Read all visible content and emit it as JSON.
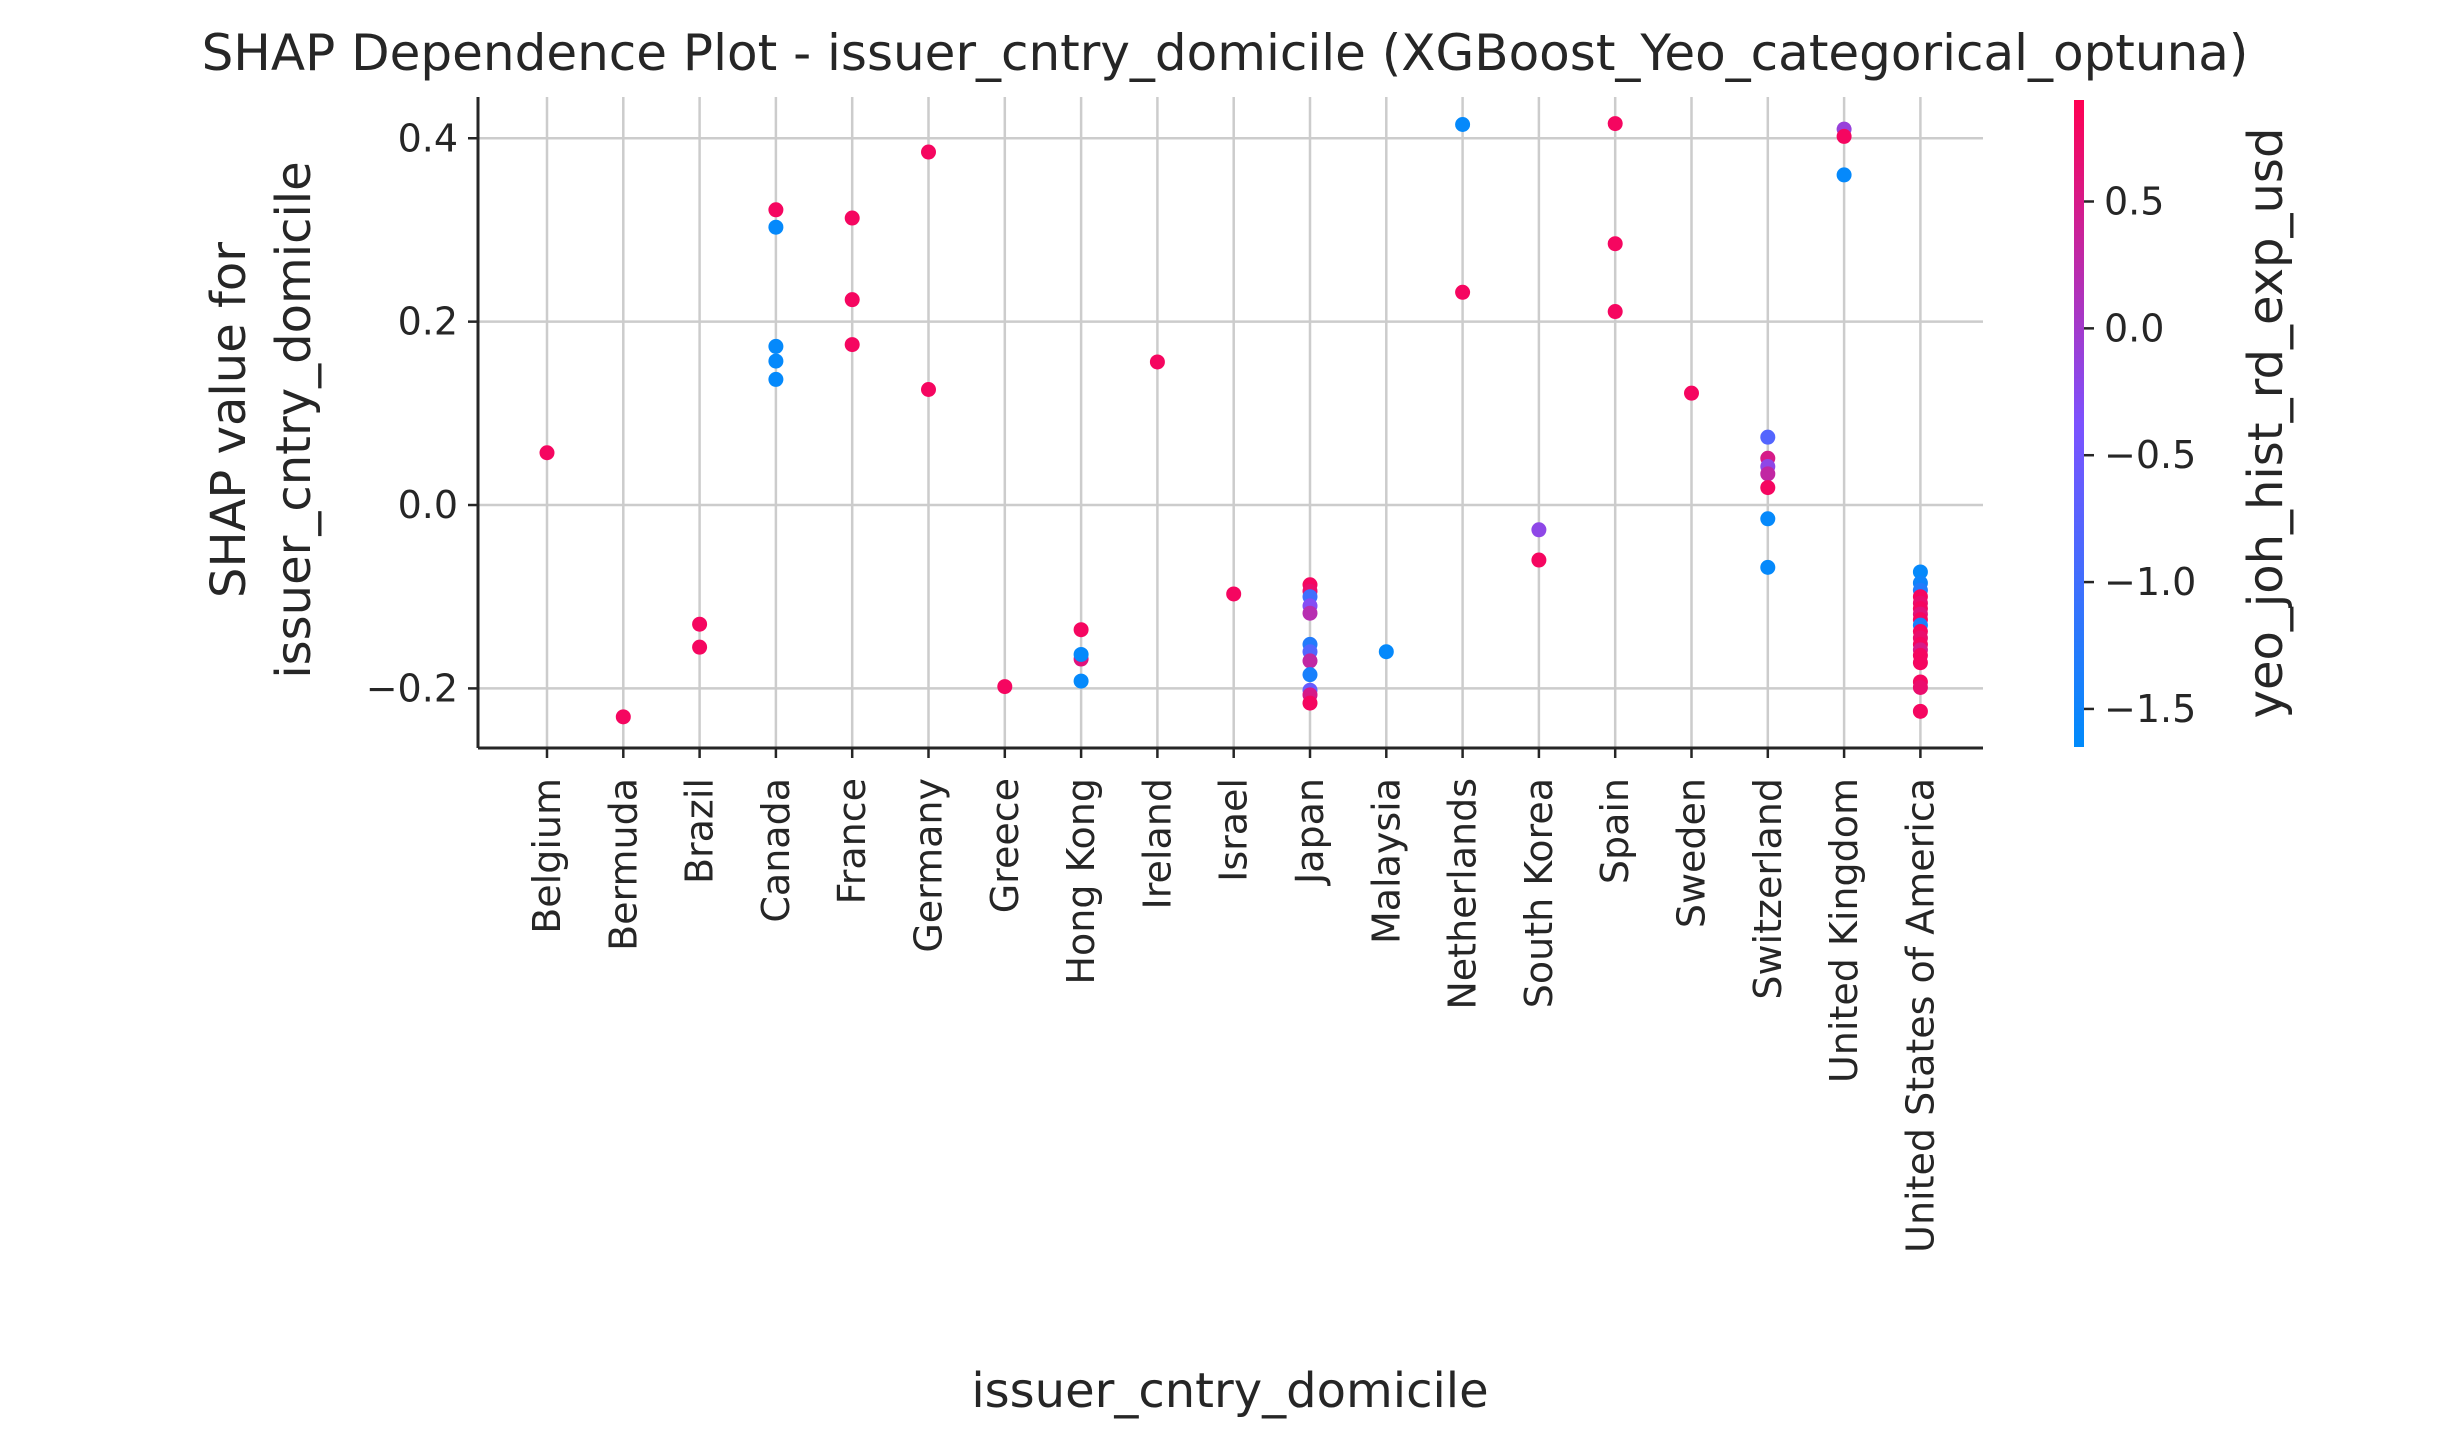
{
  "chart_data": {
    "type": "scatter",
    "title": "SHAP Dependence Plot - issuer_cntry_domicile (XGBoost_Yeo_categorical_optuna)",
    "xlabel": "issuer_cntry_domicile",
    "ylabel_lines": [
      "SHAP value for",
      "issuer_cntry_domicile"
    ],
    "categories": [
      "Belgium",
      "Bermuda",
      "Brazil",
      "Canada",
      "France",
      "Germany",
      "Greece",
      "Hong Kong",
      "Ireland",
      "Israel",
      "Japan",
      "Malaysia",
      "Netherlands",
      "South Korea",
      "Spain",
      "Sweden",
      "Switzerland",
      "United Kingdom",
      "United States of America"
    ],
    "ylim": [
      -0.265,
      0.445
    ],
    "yticks": [
      -0.2,
      0.0,
      0.2,
      0.4
    ],
    "ytick_labels": [
      "−0.2",
      "0.0",
      "0.2",
      "0.4"
    ],
    "grid": true,
    "colorbar": {
      "label": "yeo_joh_hist_rd_exp_usd",
      "range": [
        -1.65,
        0.9
      ],
      "ticks": [
        0.5,
        0.0,
        -0.5,
        -1.0,
        -1.5
      ],
      "tick_labels": [
        "0.5",
        "0.0",
        "−0.5",
        "−1.0",
        "−1.5"
      ],
      "colors": [
        "#008bfb",
        "#7c52ff",
        "#ff0052"
      ]
    },
    "points": [
      {
        "x": "Belgium",
        "y": 0.057,
        "c": 0.8
      },
      {
        "x": "Bermuda",
        "y": -0.231,
        "c": 0.8
      },
      {
        "x": "Brazil",
        "y": -0.13,
        "c": 0.8
      },
      {
        "x": "Brazil",
        "y": -0.155,
        "c": 0.8
      },
      {
        "x": "Canada",
        "y": 0.322,
        "c": 0.8
      },
      {
        "x": "Canada",
        "y": 0.303,
        "c": -1.6
      },
      {
        "x": "Canada",
        "y": 0.173,
        "c": -1.6
      },
      {
        "x": "Canada",
        "y": 0.157,
        "c": -1.6
      },
      {
        "x": "Canada",
        "y": 0.137,
        "c": -1.6
      },
      {
        "x": "France",
        "y": 0.313,
        "c": 0.8
      },
      {
        "x": "France",
        "y": 0.224,
        "c": 0.8
      },
      {
        "x": "France",
        "y": 0.175,
        "c": 0.8
      },
      {
        "x": "Germany",
        "y": 0.385,
        "c": 0.8
      },
      {
        "x": "Germany",
        "y": 0.126,
        "c": 0.8
      },
      {
        "x": "Greece",
        "y": -0.198,
        "c": 0.8
      },
      {
        "x": "Hong Kong",
        "y": -0.136,
        "c": 0.8
      },
      {
        "x": "Hong Kong",
        "y": -0.168,
        "c": 0.6
      },
      {
        "x": "Hong Kong",
        "y": -0.163,
        "c": -1.6
      },
      {
        "x": "Hong Kong",
        "y": -0.192,
        "c": -1.6
      },
      {
        "x": "Ireland",
        "y": 0.156,
        "c": 0.8
      },
      {
        "x": "Israel",
        "y": -0.097,
        "c": 0.8
      },
      {
        "x": "Japan",
        "y": -0.087,
        "c": 0.8
      },
      {
        "x": "Japan",
        "y": -0.094,
        "c": 0.7
      },
      {
        "x": "Japan",
        "y": -0.1,
        "c": -1.0
      },
      {
        "x": "Japan",
        "y": -0.11,
        "c": -0.3
      },
      {
        "x": "Japan",
        "y": -0.118,
        "c": 0.2
      },
      {
        "x": "Japan",
        "y": -0.152,
        "c": -1.3
      },
      {
        "x": "Japan",
        "y": -0.16,
        "c": -0.8
      },
      {
        "x": "Japan",
        "y": -0.17,
        "c": 0.3
      },
      {
        "x": "Japan",
        "y": -0.185,
        "c": -1.4
      },
      {
        "x": "Japan",
        "y": -0.202,
        "c": -0.6
      },
      {
        "x": "Japan",
        "y": -0.207,
        "c": 0.5
      },
      {
        "x": "Japan",
        "y": -0.216,
        "c": 0.8
      },
      {
        "x": "Malaysia",
        "y": -0.16,
        "c": -1.6
      },
      {
        "x": "Netherlands",
        "y": 0.415,
        "c": -1.6
      },
      {
        "x": "Netherlands",
        "y": 0.232,
        "c": 0.8
      },
      {
        "x": "South Korea",
        "y": -0.027,
        "c": -0.2
      },
      {
        "x": "South Korea",
        "y": -0.06,
        "c": 0.8
      },
      {
        "x": "Spain",
        "y": 0.416,
        "c": 0.8
      },
      {
        "x": "Spain",
        "y": 0.285,
        "c": 0.8
      },
      {
        "x": "Spain",
        "y": 0.211,
        "c": 0.8
      },
      {
        "x": "Sweden",
        "y": 0.122,
        "c": 0.8
      },
      {
        "x": "Switzerland",
        "y": 0.074,
        "c": -0.8
      },
      {
        "x": "Switzerland",
        "y": 0.051,
        "c": 0.5
      },
      {
        "x": "Switzerland",
        "y": 0.042,
        "c": -0.2
      },
      {
        "x": "Switzerland",
        "y": 0.034,
        "c": 0.3
      },
      {
        "x": "Switzerland",
        "y": 0.019,
        "c": 0.8
      },
      {
        "x": "Switzerland",
        "y": -0.015,
        "c": -1.6
      },
      {
        "x": "Switzerland",
        "y": -0.068,
        "c": -1.6
      },
      {
        "x": "United Kingdom",
        "y": 0.41,
        "c": -0.1
      },
      {
        "x": "United Kingdom",
        "y": 0.402,
        "c": 0.8
      },
      {
        "x": "United Kingdom",
        "y": 0.36,
        "c": -1.6
      },
      {
        "x": "United States of America",
        "y": -0.073,
        "c": -1.6
      },
      {
        "x": "United States of America",
        "y": -0.085,
        "c": -1.5
      },
      {
        "x": "United States of America",
        "y": -0.093,
        "c": -1.3
      },
      {
        "x": "United States of America",
        "y": -0.1,
        "c": 0.8
      },
      {
        "x": "United States of America",
        "y": -0.107,
        "c": 0.7
      },
      {
        "x": "United States of America",
        "y": -0.113,
        "c": 0.8
      },
      {
        "x": "United States of America",
        "y": -0.119,
        "c": 0.6
      },
      {
        "x": "United States of America",
        "y": -0.125,
        "c": 0.8
      },
      {
        "x": "United States of America",
        "y": -0.131,
        "c": -1.4
      },
      {
        "x": "United States of America",
        "y": -0.138,
        "c": 0.8
      },
      {
        "x": "United States of America",
        "y": -0.145,
        "c": 0.7
      },
      {
        "x": "United States of America",
        "y": -0.152,
        "c": 0.8
      },
      {
        "x": "United States of America",
        "y": -0.158,
        "c": 0.5
      },
      {
        "x": "United States of America",
        "y": -0.164,
        "c": 0.8
      },
      {
        "x": "United States of America",
        "y": -0.172,
        "c": 0.8
      },
      {
        "x": "United States of America",
        "y": -0.193,
        "c": 0.8
      },
      {
        "x": "United States of America",
        "y": -0.199,
        "c": 0.7
      },
      {
        "x": "United States of America",
        "y": -0.225,
        "c": 0.8
      }
    ]
  }
}
